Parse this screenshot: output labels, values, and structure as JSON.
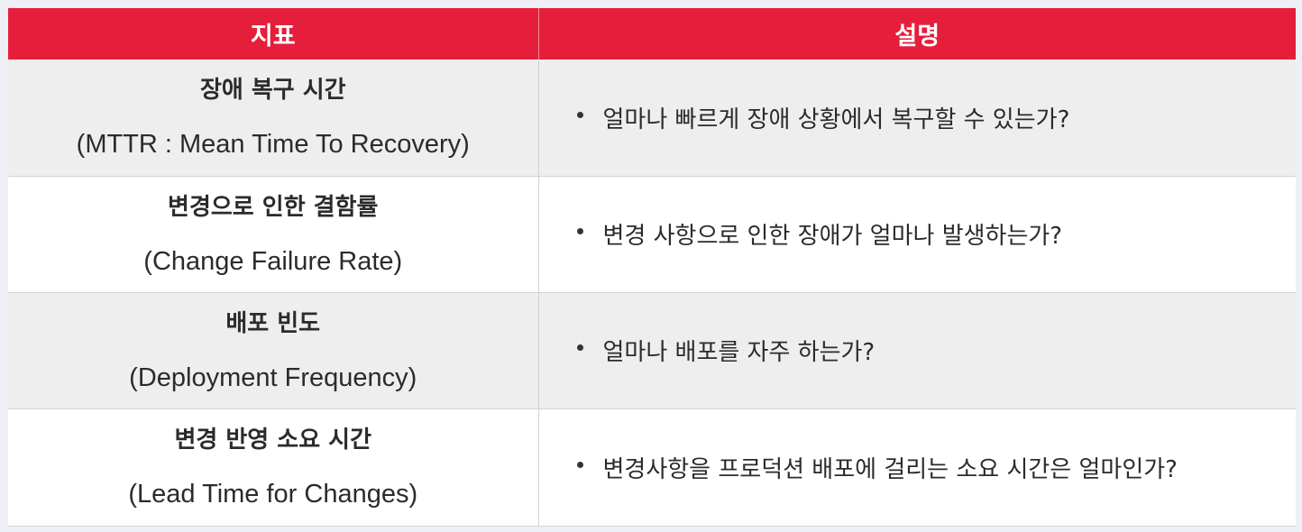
{
  "table": {
    "headers": {
      "metric": "지표",
      "description": "설명"
    },
    "rows": [
      {
        "metric_ko": "장애 복구 시간",
        "metric_en": "(MTTR : Mean Time To Recovery)",
        "description": "얼마나 빠르게 장애 상황에서 복구할 수 있는가?"
      },
      {
        "metric_ko": "변경으로 인한 결함률",
        "metric_en": "(Change Failure Rate)",
        "description": "변경 사항으로 인한 장애가 얼마나 발생하는가?"
      },
      {
        "metric_ko": "배포 빈도",
        "metric_en": "(Deployment Frequency)",
        "description": "얼마나 배포를 자주 하는가?"
      },
      {
        "metric_ko": "변경 반영 소요 시간",
        "metric_en": "(Lead Time for Changes)",
        "description": "변경사항을 프로덕션 배포에 걸리는 소요 시간은 얼마인가?"
      }
    ]
  },
  "colors": {
    "header_background": "#e51e3c",
    "header_text": "#ffffff",
    "row_shaded": "#eeeeee",
    "row_plain": "#ffffff"
  }
}
